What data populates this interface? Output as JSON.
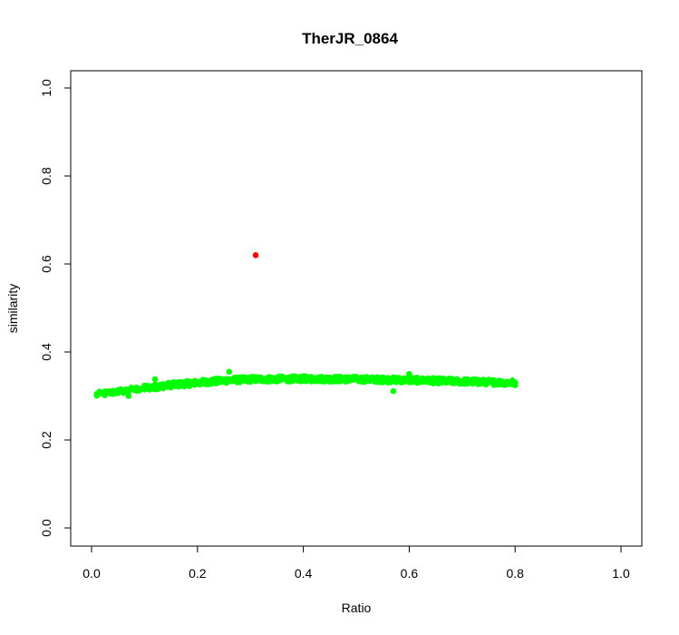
{
  "chart_data": {
    "type": "scatter",
    "title": "TherJR_0864",
    "xlabel": "Ratio",
    "ylabel": "similarity",
    "xlim": [
      0.0,
      1.0
    ],
    "ylim": [
      0.0,
      1.0
    ],
    "xticks": [
      "0.0",
      "0.2",
      "0.4",
      "0.6",
      "0.8",
      "1.0"
    ],
    "yticks": [
      "0.0",
      "0.2",
      "0.4",
      "0.6",
      "0.8",
      "1.0"
    ],
    "grid": false,
    "legend": "none",
    "series": [
      {
        "color": "#00ff00",
        "x_range": [
          0.01,
          0.8
        ],
        "x_step": 0.005,
        "trend": [
          [
            0.01,
            0.303
          ],
          [
            0.05,
            0.31
          ],
          [
            0.1,
            0.318
          ],
          [
            0.15,
            0.325
          ],
          [
            0.2,
            0.33
          ],
          [
            0.25,
            0.335
          ],
          [
            0.3,
            0.338
          ],
          [
            0.4,
            0.339
          ],
          [
            0.5,
            0.338
          ],
          [
            0.6,
            0.336
          ],
          [
            0.7,
            0.333
          ],
          [
            0.8,
            0.33
          ]
        ],
        "spread": 0.012,
        "outliers": [
          [
            0.57,
            0.311
          ],
          [
            0.26,
            0.355
          ],
          [
            0.12,
            0.338
          ],
          [
            0.07,
            0.3
          ],
          [
            0.6,
            0.35
          ]
        ]
      },
      {
        "color": "#ff0000",
        "points": [
          [
            0.31,
            0.62
          ]
        ]
      }
    ]
  }
}
